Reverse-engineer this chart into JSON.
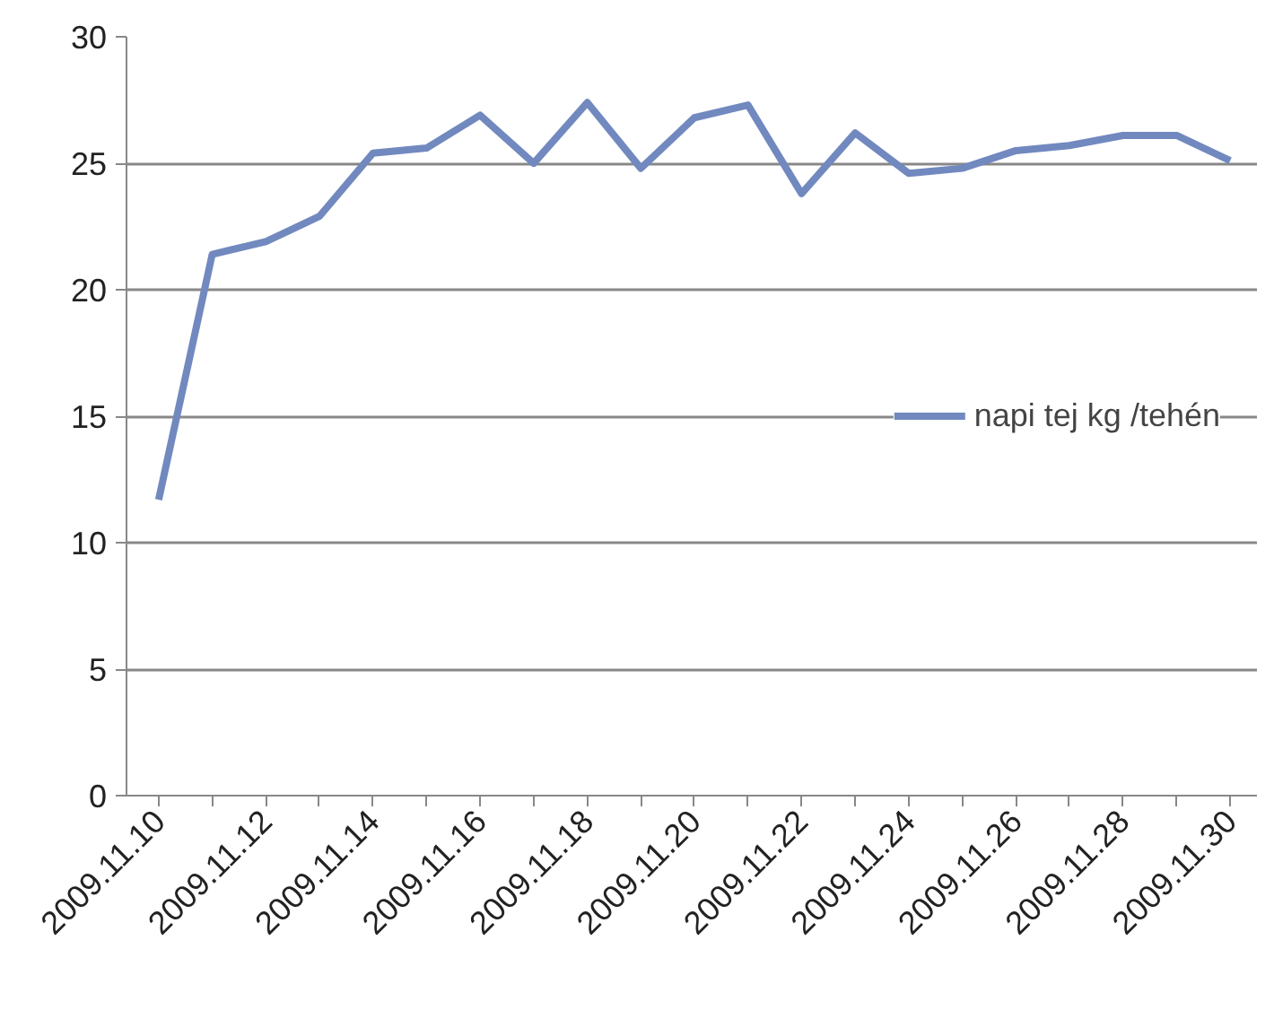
{
  "chart_data": {
    "type": "line",
    "categories": [
      "2009.11.10",
      null,
      "2009.11.12",
      null,
      "2009.11.14",
      null,
      "2009.11.16",
      null,
      "2009.11.18",
      null,
      "2009.11.20",
      null,
      "2009.11.22",
      null,
      "2009.11.24",
      null,
      "2009.11.26",
      null,
      "2009.11.28",
      null,
      "2009.11.30"
    ],
    "series": [
      {
        "name": "napi tej kg /tehén",
        "color": "#7189bf",
        "values": [
          11.7,
          21.4,
          21.9,
          22.9,
          25.4,
          25.6,
          26.9,
          25.0,
          27.4,
          24.8,
          26.8,
          27.3,
          23.8,
          26.2,
          24.6,
          24.8,
          25.5,
          25.7,
          26.1,
          26.1,
          25.1
        ]
      }
    ],
    "ylim": [
      0,
      30
    ],
    "yticks": [
      0,
      5,
      10,
      15,
      20,
      25,
      30
    ],
    "grid": "y",
    "legend": "right",
    "marker": "none",
    "line_style": "solid"
  }
}
